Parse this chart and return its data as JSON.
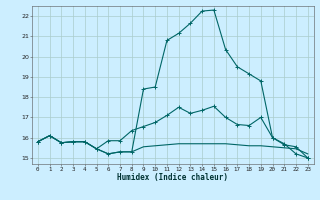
{
  "xlabel": "Humidex (Indice chaleur)",
  "xlim": [
    -0.5,
    23.5
  ],
  "ylim": [
    14.7,
    22.5
  ],
  "yticks": [
    15,
    16,
    17,
    18,
    19,
    20,
    21,
    22
  ],
  "xticks": [
    0,
    1,
    2,
    3,
    4,
    5,
    6,
    7,
    8,
    9,
    10,
    11,
    12,
    13,
    14,
    15,
    16,
    17,
    18,
    19,
    20,
    21,
    22,
    23
  ],
  "bg_color": "#cceeff",
  "line_color": "#006666",
  "grid_color": "#aacccc",
  "line1_x": [
    0,
    1,
    2,
    3,
    4,
    5,
    6,
    7,
    8,
    9,
    10,
    11,
    12,
    13,
    14,
    15,
    16,
    17,
    18,
    19,
    20,
    21,
    22,
    23
  ],
  "line1_y": [
    15.8,
    16.1,
    15.75,
    15.8,
    15.8,
    15.45,
    15.2,
    15.3,
    15.3,
    18.4,
    18.5,
    20.8,
    21.15,
    21.65,
    22.25,
    22.3,
    20.35,
    19.5,
    19.15,
    18.8,
    16.0,
    15.7,
    15.2,
    15.0
  ],
  "line2_x": [
    0,
    1,
    2,
    3,
    4,
    5,
    6,
    7,
    8,
    9,
    10,
    11,
    12,
    13,
    14,
    15,
    16,
    17,
    18,
    19,
    20,
    21,
    22,
    23
  ],
  "line2_y": [
    15.8,
    16.1,
    15.75,
    15.8,
    15.8,
    15.45,
    15.85,
    15.85,
    16.35,
    16.55,
    16.75,
    17.1,
    17.5,
    17.2,
    17.35,
    17.55,
    17.0,
    16.65,
    16.6,
    17.0,
    16.0,
    15.65,
    15.55,
    15.0
  ],
  "line3_x": [
    0,
    1,
    2,
    3,
    4,
    5,
    6,
    7,
    8,
    9,
    10,
    11,
    12,
    13,
    14,
    15,
    16,
    17,
    18,
    19,
    20,
    21,
    22,
    23
  ],
  "line3_y": [
    15.8,
    16.1,
    15.75,
    15.8,
    15.8,
    15.45,
    15.2,
    15.3,
    15.3,
    15.55,
    15.6,
    15.65,
    15.7,
    15.7,
    15.7,
    15.7,
    15.7,
    15.65,
    15.6,
    15.6,
    15.55,
    15.5,
    15.45,
    15.2
  ]
}
